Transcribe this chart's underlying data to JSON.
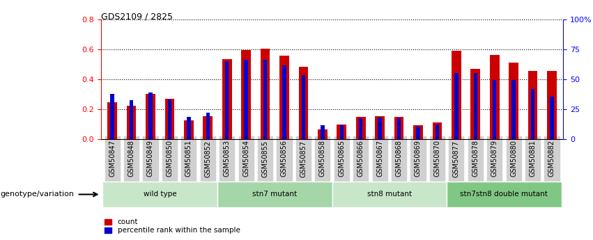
{
  "title": "GDS2109 / 2825",
  "samples": [
    "GSM50847",
    "GSM50848",
    "GSM50849",
    "GSM50850",
    "GSM50851",
    "GSM50852",
    "GSM50853",
    "GSM50854",
    "GSM50855",
    "GSM50856",
    "GSM50857",
    "GSM50858",
    "GSM50865",
    "GSM50866",
    "GSM50867",
    "GSM50868",
    "GSM50869",
    "GSM50870",
    "GSM50877",
    "GSM50878",
    "GSM50879",
    "GSM50880",
    "GSM50881",
    "GSM50882"
  ],
  "count_values": [
    0.245,
    0.225,
    0.3,
    0.27,
    0.125,
    0.155,
    0.535,
    0.595,
    0.605,
    0.555,
    0.485,
    0.065,
    0.1,
    0.15,
    0.155,
    0.15,
    0.095,
    0.11,
    0.59,
    0.47,
    0.56,
    0.51,
    0.455,
    0.455
  ],
  "percentile_values": [
    0.3,
    0.26,
    0.31,
    0.265,
    0.15,
    0.175,
    0.52,
    0.53,
    0.53,
    0.49,
    0.425,
    0.095,
    0.095,
    0.14,
    0.145,
    0.14,
    0.085,
    0.1,
    0.44,
    0.44,
    0.395,
    0.395,
    0.335,
    0.285
  ],
  "groups": [
    {
      "label": "wild type",
      "start": 0,
      "end": 5,
      "color": "#c8e6c9"
    },
    {
      "label": "stn7 mutant",
      "start": 6,
      "end": 11,
      "color": "#a5d6a7"
    },
    {
      "label": "stn8 mutant",
      "start": 12,
      "end": 17,
      "color": "#c8e6c9"
    },
    {
      "label": "stn7stn8 double mutant",
      "start": 18,
      "end": 23,
      "color": "#81c784"
    }
  ],
  "bar_color_red": "#cc0000",
  "bar_color_blue": "#0000cc",
  "ylim_left": [
    0,
    0.8
  ],
  "ylim_right": [
    0,
    100
  ],
  "yticks_left": [
    0,
    0.2,
    0.4,
    0.6,
    0.8
  ],
  "yticks_right": [
    0,
    25,
    50,
    75,
    100
  ],
  "ytick_labels_right": [
    "0",
    "25",
    "50",
    "75",
    "100%"
  ],
  "legend_count": "count",
  "legend_percentile": "percentile rank within the sample",
  "group_label": "genotype/variation"
}
